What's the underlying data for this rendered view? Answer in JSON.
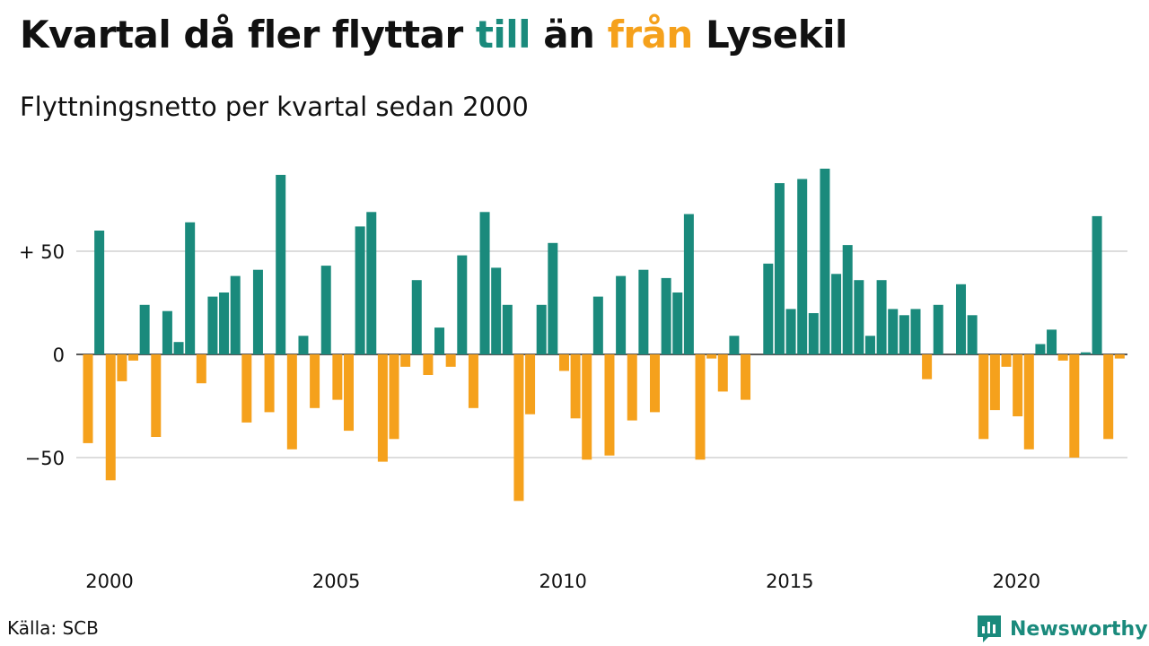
{
  "title": {
    "part1": "Kvartal då fler flyttar ",
    "till": "till",
    "part2": " än ",
    "fran": "från",
    "part3": " Lysekil"
  },
  "subtitle": "Flyttningsnetto per kvartal sedan 2000",
  "source": "Källa: SCB",
  "brand": {
    "name": "Newsworthy",
    "icon": "newsworthy-logo-icon"
  },
  "colors": {
    "positive": "#1a8a7c",
    "negative": "#f5a11c",
    "grid": "#dddddd",
    "zero_line": "#222222"
  },
  "chart_data": {
    "type": "bar",
    "title": "Kvartal då fler flyttar till än från Lysekil",
    "subtitle": "Flyttningsnetto per kvartal sedan 2000",
    "ylim": [
      -80,
      95
    ],
    "yticks": [
      {
        "value": 50,
        "label": "+ 50"
      },
      {
        "value": 0,
        "label": "0"
      },
      {
        "value": -50,
        "label": "−50"
      }
    ],
    "xticks": [
      {
        "year": 2000,
        "label": "2000"
      },
      {
        "year": 2005,
        "label": "2005"
      },
      {
        "year": 2010,
        "label": "2010"
      },
      {
        "year": 2015,
        "label": "2015"
      },
      {
        "year": 2020,
        "label": "2020"
      }
    ],
    "grid": true,
    "start_year": 2000,
    "values": [
      -43,
      60,
      -61,
      -13,
      -3,
      24,
      -40,
      21,
      6,
      64,
      -14,
      28,
      30,
      38,
      -33,
      41,
      -28,
      87,
      -46,
      9,
      -26,
      43,
      -22,
      -37,
      62,
      69,
      -52,
      -41,
      -6,
      36,
      -10,
      13,
      -6,
      48,
      -26,
      69,
      42,
      24,
      -71,
      -29,
      24,
      54,
      -8,
      -31,
      -51,
      28,
      -49,
      38,
      -32,
      41,
      -28,
      37,
      30,
      68,
      -51,
      -2,
      -18,
      9,
      -22,
      0,
      44,
      83,
      22,
      85,
      20,
      90,
      39,
      53,
      36,
      9,
      36,
      22,
      19,
      22,
      -12,
      24,
      0,
      34,
      19,
      -41,
      -27,
      -6,
      -30,
      -46,
      5,
      12,
      -3,
      -50,
      1,
      67,
      -41,
      -2
    ]
  }
}
